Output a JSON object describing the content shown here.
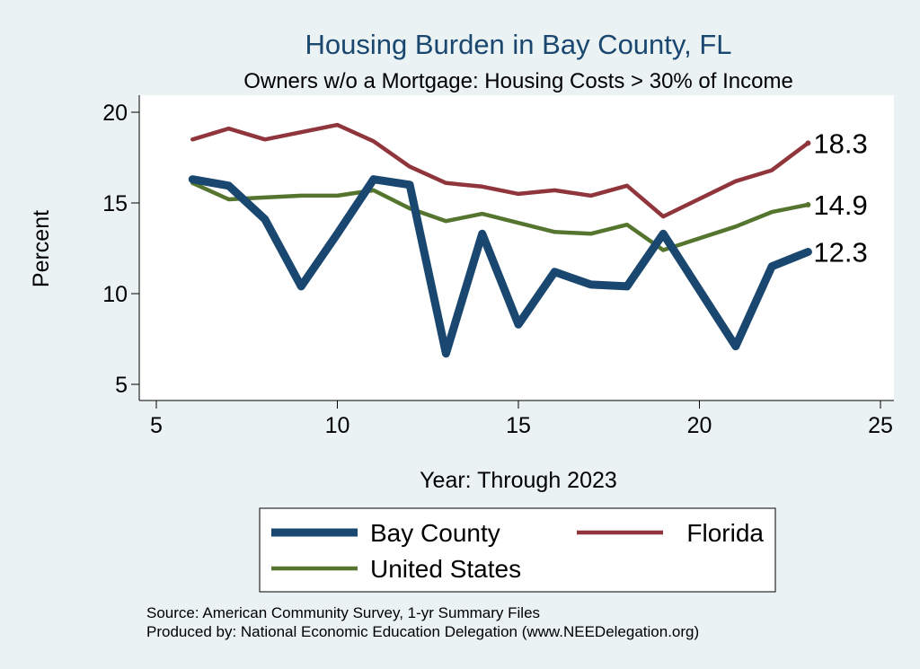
{
  "chart_data": {
    "type": "line",
    "title": "Housing Burden in Bay County, FL",
    "subtitle": "Owners w/o a Mortgage: Housing Costs > 30% of Income",
    "xlabel": "Year: Through 2023",
    "ylabel": "Percent",
    "xlim": [
      5,
      25
    ],
    "ylim": [
      5,
      20
    ],
    "xticks": [
      5,
      10,
      15,
      20,
      25
    ],
    "yticks": [
      5,
      10,
      15,
      20
    ],
    "grid": false,
    "legend_position": "bottom",
    "series": [
      {
        "name": "Bay County",
        "color": "#1a476f",
        "x": [
          6,
          7,
          8,
          9,
          10,
          11,
          12,
          13,
          14,
          15,
          16,
          17,
          18,
          19,
          21,
          22,
          23
        ],
        "y": [
          16.3,
          15.95,
          14.1,
          10.4,
          13.3,
          16.3,
          16.0,
          6.7,
          13.3,
          8.3,
          11.2,
          10.5,
          10.4,
          13.3,
          7.1,
          11.5,
          12.3
        ],
        "end_label": "12.3"
      },
      {
        "name": "Florida",
        "color": "#90353b",
        "x": [
          6,
          7,
          8,
          9,
          10,
          11,
          12,
          13,
          14,
          15,
          16,
          17,
          18,
          19,
          21,
          22,
          23
        ],
        "y": [
          18.5,
          19.1,
          18.5,
          18.9,
          19.3,
          18.4,
          17.0,
          16.1,
          15.9,
          15.5,
          15.7,
          15.4,
          15.95,
          14.25,
          16.2,
          16.8,
          18.3
        ],
        "end_label": "18.3"
      },
      {
        "name": "United States",
        "color": "#55752f",
        "x": [
          6,
          7,
          8,
          9,
          10,
          11,
          12,
          13,
          14,
          15,
          16,
          17,
          18,
          19,
          21,
          22,
          23
        ],
        "y": [
          16.1,
          15.2,
          15.3,
          15.4,
          15.4,
          15.7,
          14.7,
          14.0,
          14.4,
          13.9,
          13.4,
          13.3,
          13.8,
          12.4,
          13.7,
          14.5,
          14.9
        ],
        "end_label": "14.9"
      }
    ],
    "notes": [
      "Source: American Community Survey, 1-yr Summary Files",
      "Produced by: National Economic Education Delegation (www.NEEDelegation.org)"
    ]
  }
}
